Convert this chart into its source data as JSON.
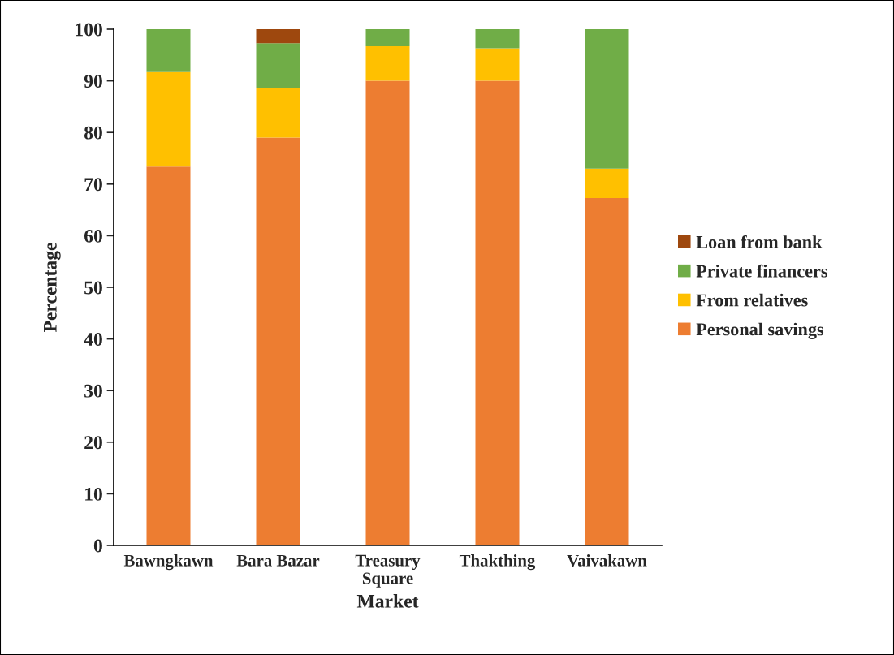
{
  "chart_data": {
    "type": "bar",
    "stacked": true,
    "xlabel": "Market",
    "ylabel": "Percentage",
    "categories": [
      "Bawngkawn",
      "Bara Bazar",
      "Treasury\nSquare",
      "Thakthing",
      "Vaivakawn"
    ],
    "series": [
      {
        "name": "Personal savings",
        "color": "#ed7d31",
        "values": [
          73.4,
          79.0,
          90.0,
          90.0,
          67.3
        ]
      },
      {
        "name": "From relatives",
        "color": "#ffc000",
        "values": [
          18.3,
          9.6,
          6.7,
          6.3,
          5.7
        ]
      },
      {
        "name": "Private financers",
        "color": "#70ad47",
        "values": [
          8.3,
          8.7,
          3.3,
          3.7,
          27.0
        ]
      },
      {
        "name": "Loan from bank",
        "color": "#9e480e",
        "values": [
          null,
          2.7,
          null,
          null,
          null
        ]
      }
    ],
    "ylim": [
      0,
      100
    ],
    "yticks": [
      0,
      10,
      20,
      30,
      40,
      50,
      60,
      70,
      80,
      90,
      100
    ],
    "grid": false,
    "legend": "right"
  }
}
